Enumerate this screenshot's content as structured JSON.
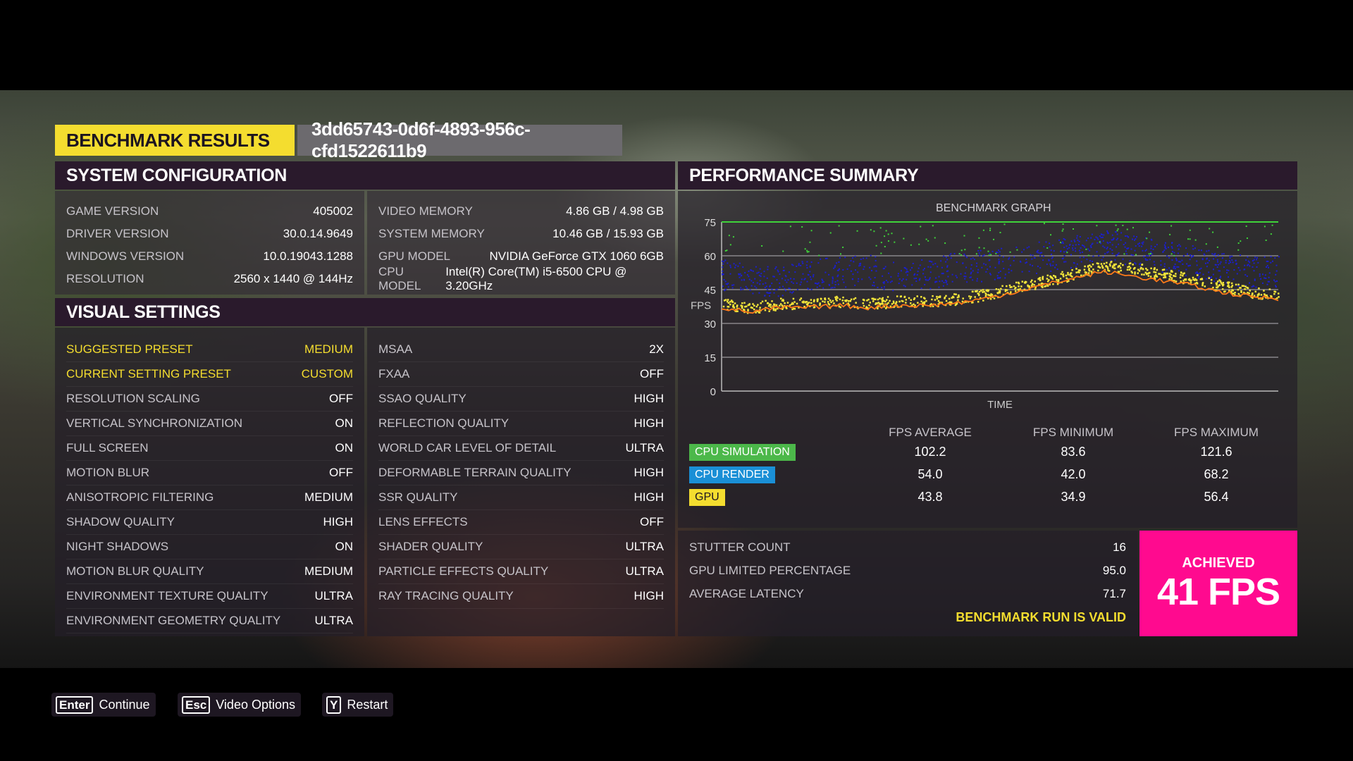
{
  "header": {
    "title": "BENCHMARK RESULTS",
    "run_id": "3dd65743-0d6f-4893-956c-cfd1522611b9"
  },
  "system": {
    "title": "SYSTEM CONFIGURATION",
    "left": [
      {
        "label": "GAME VERSION",
        "value": "405002"
      },
      {
        "label": "DRIVER VERSION",
        "value": "30.0.14.9649"
      },
      {
        "label": "WINDOWS VERSION",
        "value": "10.0.19043.1288"
      },
      {
        "label": "RESOLUTION",
        "value": "2560 x 1440 @ 144Hz"
      }
    ],
    "right": [
      {
        "label": "VIDEO MEMORY",
        "value": "4.86 GB / 4.98 GB"
      },
      {
        "label": "SYSTEM MEMORY",
        "value": "10.46 GB / 15.93 GB"
      },
      {
        "label": "GPU MODEL",
        "value": "NVIDIA GeForce GTX 1060 6GB"
      },
      {
        "label": "CPU MODEL",
        "value": "Intel(R) Core(TM) i5-6500 CPU @ 3.20GHz"
      }
    ]
  },
  "visual": {
    "title": "VISUAL SETTINGS",
    "left": [
      {
        "label": "SUGGESTED PRESET",
        "value": "MEDIUM"
      },
      {
        "label": "CURRENT SETTING PRESET",
        "value": "CUSTOM"
      },
      {
        "label": "RESOLUTION SCALING",
        "value": "OFF"
      },
      {
        "label": "VERTICAL SYNCHRONIZATION",
        "value": "ON"
      },
      {
        "label": "FULL SCREEN",
        "value": "ON"
      },
      {
        "label": "MOTION BLUR",
        "value": "OFF"
      },
      {
        "label": "ANISOTROPIC FILTERING",
        "value": "MEDIUM"
      },
      {
        "label": "SHADOW QUALITY",
        "value": "HIGH"
      },
      {
        "label": "NIGHT SHADOWS",
        "value": "ON"
      },
      {
        "label": "MOTION BLUR QUALITY",
        "value": "MEDIUM"
      },
      {
        "label": "ENVIRONMENT TEXTURE QUALITY",
        "value": "ULTRA"
      },
      {
        "label": "ENVIRONMENT GEOMETRY QUALITY",
        "value": "ULTRA"
      }
    ],
    "right": [
      {
        "label": "MSAA",
        "value": "2X"
      },
      {
        "label": "FXAA",
        "value": "OFF"
      },
      {
        "label": "SSAO QUALITY",
        "value": "HIGH"
      },
      {
        "label": "REFLECTION QUALITY",
        "value": "HIGH"
      },
      {
        "label": "WORLD CAR LEVEL OF DETAIL",
        "value": "ULTRA"
      },
      {
        "label": "DEFORMABLE TERRAIN QUALITY",
        "value": "HIGH"
      },
      {
        "label": "SSR QUALITY",
        "value": "HIGH"
      },
      {
        "label": "LENS EFFECTS",
        "value": "OFF"
      },
      {
        "label": "SHADER QUALITY",
        "value": "ULTRA"
      },
      {
        "label": "PARTICLE EFFECTS QUALITY",
        "value": "ULTRA"
      },
      {
        "label": "RAY TRACING QUALITY",
        "value": "HIGH"
      }
    ]
  },
  "performance": {
    "title": "PERFORMANCE SUMMARY",
    "columns": [
      "FPS AVERAGE",
      "FPS MINIMUM",
      "FPS MAXIMUM"
    ],
    "rows": [
      {
        "label": "CPU SIMULATION",
        "avg": "102.2",
        "min": "83.6",
        "max": "121.6",
        "color": "#4cb84a"
      },
      {
        "label": "CPU RENDER",
        "avg": "54.0",
        "min": "42.0",
        "max": "68.2",
        "color": "#1a8fd6"
      },
      {
        "label": "GPU",
        "avg": "43.8",
        "min": "34.9",
        "max": "56.4",
        "color": "#f4dd2f"
      }
    ],
    "stats": [
      {
        "label": "STUTTER COUNT",
        "value": "16"
      },
      {
        "label": "GPU LIMITED PERCENTAGE",
        "value": "95.0"
      },
      {
        "label": "AVERAGE LATENCY",
        "value": "71.7"
      }
    ],
    "valid_text": "BENCHMARK RUN IS VALID",
    "achieved_label": "ACHIEVED",
    "achieved_value": "41 FPS"
  },
  "chart_data": {
    "type": "scatter",
    "title": "BENCHMARK GRAPH",
    "xlabel": "TIME",
    "ylabel": "FPS",
    "ylim": [
      0,
      75
    ],
    "yticks": [
      0,
      15,
      30,
      45,
      60,
      75
    ],
    "grid": true,
    "series": [
      {
        "name": "CPU SIMULATION",
        "color": "#3fd23a",
        "values": [
          75,
          75,
          75,
          75,
          75,
          75,
          75,
          75,
          75,
          75,
          75,
          75,
          75,
          75,
          75,
          75,
          75,
          75,
          75,
          75
        ]
      },
      {
        "name": "CPU RENDER",
        "color": "#1b1fd0",
        "values": [
          52,
          50,
          49,
          52,
          53,
          54,
          51,
          52,
          55,
          56,
          58,
          60,
          62,
          65,
          63,
          60,
          58,
          55,
          53,
          53
        ]
      },
      {
        "name": "GPU",
        "color": "#f2e43a",
        "values": [
          39,
          37,
          39,
          39,
          40,
          39,
          40,
          40,
          41,
          43,
          46,
          49,
          52,
          56,
          55,
          52,
          50,
          47,
          44,
          43
        ]
      }
    ],
    "min_line": {
      "color": "#ff7a1a",
      "values": [
        37,
        35,
        37,
        37,
        38,
        37,
        38,
        38,
        39,
        41,
        44,
        47,
        50,
        53,
        51,
        49,
        47,
        44,
        42,
        41
      ]
    }
  },
  "footer": {
    "buttons": [
      {
        "key": "Enter",
        "label": "Continue"
      },
      {
        "key": "Esc",
        "label": "Video Options"
      },
      {
        "key": "Y",
        "label": "Restart"
      }
    ]
  }
}
